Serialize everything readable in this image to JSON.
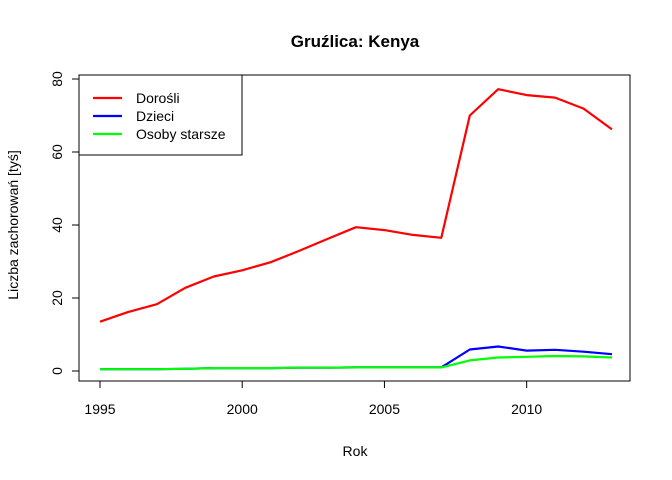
{
  "chart_data": {
    "type": "line",
    "title": "Gruźlica: Kenya",
    "xlabel": "Rok",
    "ylabel": "Liczba zachorowań [tyś]",
    "x": [
      1995,
      1996,
      1997,
      1998,
      1999,
      2000,
      2001,
      2002,
      2003,
      2004,
      2005,
      2006,
      2007,
      2008,
      2009,
      2010,
      2011,
      2012,
      2013
    ],
    "xlim": [
      1995,
      2013
    ],
    "ylim": [
      0,
      80
    ],
    "x_ticks": [
      1995,
      2000,
      2005,
      2010
    ],
    "y_ticks": [
      0,
      20,
      40,
      60,
      80
    ],
    "grid": false,
    "legend_position": "top-left",
    "series": [
      {
        "name": "Dorośli",
        "color": "#ff0000",
        "values": [
          13.5,
          16.2,
          18.3,
          22.8,
          25.9,
          27.6,
          29.8,
          32.9,
          36.2,
          39.4,
          38.6,
          37.3,
          36.5,
          70.0,
          77.2,
          75.6,
          74.9,
          71.9,
          66.2
        ]
      },
      {
        "name": "Dzieci",
        "color": "#0000ff",
        "values": [
          0.5,
          0.5,
          0.5,
          0.6,
          0.8,
          0.8,
          0.8,
          0.9,
          0.9,
          1.0,
          1.0,
          1.0,
          1.0,
          5.9,
          6.7,
          5.6,
          5.8,
          5.3,
          4.6
        ]
      },
      {
        "name": "Osoby starsze",
        "color": "#00ff00",
        "values": [
          0.5,
          0.5,
          0.5,
          0.6,
          0.8,
          0.8,
          0.8,
          0.9,
          0.9,
          1.0,
          1.0,
          1.0,
          1.0,
          2.9,
          3.7,
          3.9,
          4.1,
          4.0,
          3.7
        ]
      }
    ]
  }
}
